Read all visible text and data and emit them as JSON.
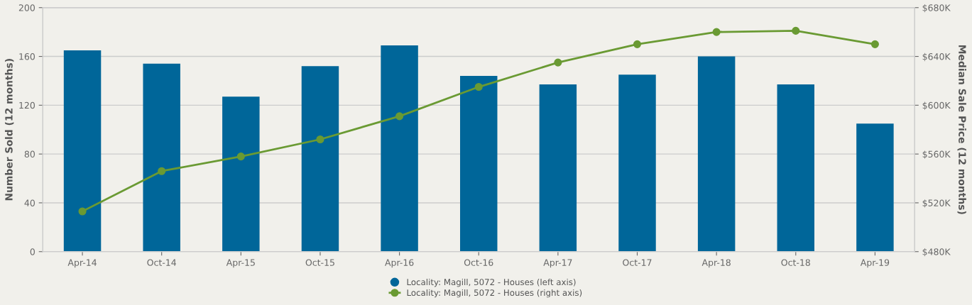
{
  "chart_data": {
    "type": "bar",
    "ylabel": "Number Sold (12 months)",
    "y2label": "Median Sale Price (12 months)",
    "categories": [
      "Apr-14",
      "Oct-14",
      "Apr-15",
      "Oct-15",
      "Apr-16",
      "Oct-16",
      "Apr-17",
      "Oct-17",
      "Apr-18",
      "Oct-18",
      "Apr-19"
    ],
    "series": [
      {
        "name": "Locality: Magill, 5072 - Houses (left axis)",
        "color": "#006699",
        "values": [
          165,
          154,
          127,
          152,
          169,
          144,
          137,
          145,
          160,
          137,
          105
        ]
      },
      {
        "name": "Locality: Magill, 5072 - Houses (right axis)",
        "type": "line",
        "axis": "y2",
        "color": "#6a9a33",
        "marker": "circle",
        "values": [
          513000,
          546000,
          558000,
          572000,
          591000,
          615000,
          635000,
          650000,
          660000,
          661000,
          650000
        ]
      }
    ],
    "ylim": [
      0,
      200
    ],
    "yticks": [
      0,
      40,
      80,
      120,
      160,
      200
    ],
    "y2lim": [
      480000,
      680000
    ],
    "y2ticks": [
      {
        "value": 480000,
        "label": "$480K"
      },
      {
        "value": 520000,
        "label": "$520K"
      },
      {
        "value": 560000,
        "label": "$560K"
      },
      {
        "value": 600000,
        "label": "$600K"
      },
      {
        "value": 640000,
        "label": "$640K"
      },
      {
        "value": 680000,
        "label": "$680K"
      }
    ],
    "grid": "y",
    "legend": "bottom"
  }
}
